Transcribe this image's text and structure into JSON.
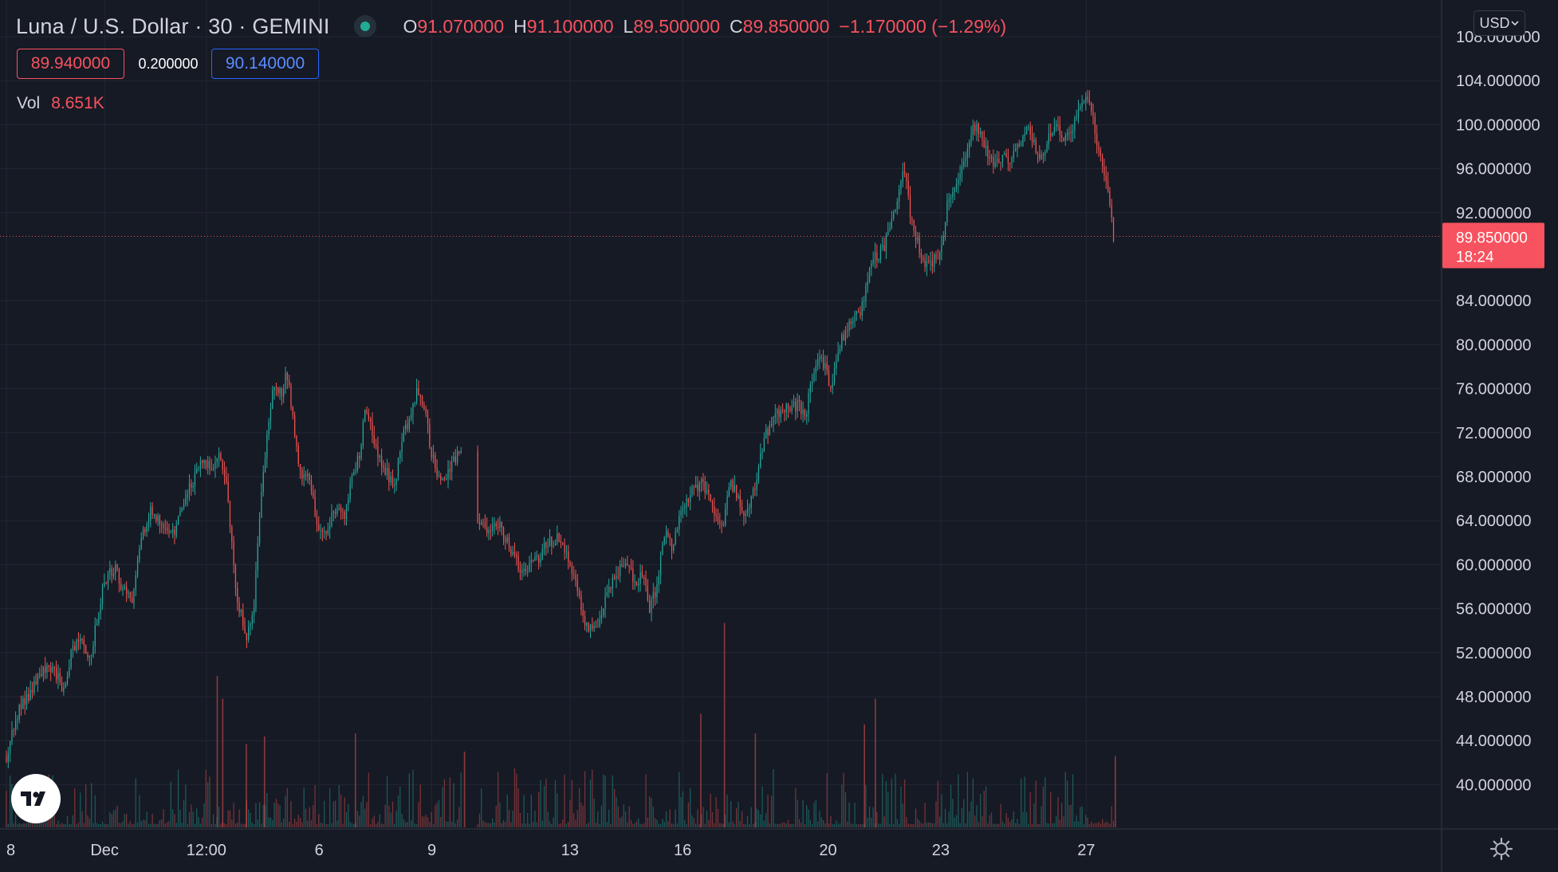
{
  "header": {
    "title": "Luna / U.S. Dollar · 30 · GEMINI",
    "ohlc": {
      "o_label": "O",
      "o": "91.070000",
      "h_label": "H",
      "h": "91.100000",
      "l_label": "L",
      "l": "89.500000",
      "c_label": "C",
      "c": "89.850000",
      "change": "−1.170000 (−1.29%)"
    },
    "bid": "89.940000",
    "spread": "0.200000",
    "ask": "90.140000",
    "volume_label": "Vol",
    "volume_value": "8.651K",
    "currency": "USD"
  },
  "colors": {
    "up": "#26a69a",
    "down": "#ef5350",
    "background": "#161a25",
    "grid": "#232633",
    "ask": "#2962ff"
  },
  "last_price": {
    "value": 89.85,
    "label": "89.850000",
    "countdown": "18:24"
  },
  "chart_data": {
    "type": "candlestick",
    "symbol": "Luna / U.S. Dollar",
    "interval": "30",
    "exchange": "GEMINI",
    "y_ticks": [
      "40.000000",
      "44.000000",
      "48.000000",
      "52.000000",
      "56.000000",
      "60.000000",
      "64.000000",
      "68.000000",
      "72.000000",
      "76.000000",
      "80.000000",
      "84.000000",
      "92.000000",
      "96.000000",
      "100.000000",
      "104.000000",
      "108.000000"
    ],
    "ylim": [
      36.5,
      109
    ],
    "x_ticks": [
      {
        "label": "8",
        "t": 0
      },
      {
        "label": "Dec",
        "t": 2.7
      },
      {
        "label": "12:00",
        "t": 5.5
      },
      {
        "label": "6",
        "t": 8.6
      },
      {
        "label": "9",
        "t": 11.7
      },
      {
        "label": "13",
        "t": 15.5
      },
      {
        "label": "16",
        "t": 18.6
      },
      {
        "label": "20",
        "t": 22.6
      },
      {
        "label": "23",
        "t": 25.7
      },
      {
        "label": "27",
        "t": 29.7
      }
    ],
    "xlim": [
      -0.1,
      30.8
    ],
    "price_path": [
      [
        0,
        42.5
      ],
      [
        0.3,
        46.5
      ],
      [
        0.7,
        48.5
      ],
      [
        1.0,
        50.5
      ],
      [
        1.3,
        50.5
      ],
      [
        1.6,
        48.5
      ],
      [
        1.8,
        52.5
      ],
      [
        2.1,
        53.0
      ],
      [
        2.3,
        51.5
      ],
      [
        2.7,
        58.5
      ],
      [
        3.0,
        60.0
      ],
      [
        3.2,
        57.5
      ],
      [
        3.5,
        57.0
      ],
      [
        3.7,
        62.5
      ],
      [
        4.0,
        65.0
      ],
      [
        4.3,
        63.5
      ],
      [
        4.6,
        63.0
      ],
      [
        4.9,
        66.0
      ],
      [
        5.1,
        67.5
      ],
      [
        5.4,
        69.5
      ],
      [
        5.7,
        68.5
      ],
      [
        5.9,
        70.0
      ],
      [
        6.1,
        66.0
      ],
      [
        6.3,
        58.0
      ],
      [
        6.6,
        53.0
      ],
      [
        6.8,
        56.0
      ],
      [
        7.0,
        66.0
      ],
      [
        7.2,
        73.0
      ],
      [
        7.4,
        77.0
      ],
      [
        7.6,
        74.5
      ],
      [
        7.7,
        78.0
      ],
      [
        7.9,
        72.5
      ],
      [
        8.1,
        68.0
      ],
      [
        8.3,
        68.5
      ],
      [
        8.5,
        64.5
      ],
      [
        8.7,
        62.5
      ],
      [
        8.9,
        64.0
      ],
      [
        9.1,
        65.0
      ],
      [
        9.3,
        64.5
      ],
      [
        9.5,
        67.5
      ],
      [
        9.7,
        70.0
      ],
      [
        9.9,
        74.5
      ],
      [
        10.1,
        71.0
      ],
      [
        10.3,
        69.5
      ],
      [
        10.5,
        68.0
      ],
      [
        10.7,
        67.5
      ],
      [
        10.9,
        72.0
      ],
      [
        11.1,
        73.0
      ],
      [
        11.3,
        76.0
      ],
      [
        11.5,
        74.0
      ],
      [
        11.7,
        70.0
      ],
      [
        11.9,
        67.5
      ],
      [
        12.1,
        68.0
      ],
      [
        12.3,
        69.5
      ],
      [
        12.5,
        70.5
      ],
      [
        13.0,
        63.5
      ],
      [
        13.3,
        63.0
      ],
      [
        13.6,
        63.5
      ],
      [
        13.9,
        61.0
      ],
      [
        14.2,
        59.5
      ],
      [
        14.5,
        60.0
      ],
      [
        14.8,
        61.5
      ],
      [
        15.1,
        62.5
      ],
      [
        15.4,
        61.0
      ],
      [
        15.7,
        58.0
      ],
      [
        15.9,
        54.5
      ],
      [
        16.1,
        54.0
      ],
      [
        16.3,
        55.0
      ],
      [
        16.5,
        57.0
      ],
      [
        16.8,
        59.5
      ],
      [
        17.1,
        60.0
      ],
      [
        17.3,
        58.5
      ],
      [
        17.5,
        59.0
      ],
      [
        17.7,
        56.0
      ],
      [
        17.9,
        58.0
      ],
      [
        18.1,
        63.0
      ],
      [
        18.3,
        61.5
      ],
      [
        18.5,
        64.5
      ],
      [
        18.8,
        66.5
      ],
      [
        19.1,
        67.5
      ],
      [
        19.3,
        66.0
      ],
      [
        19.5,
        64.0
      ],
      [
        19.7,
        63.0
      ],
      [
        19.9,
        68.0
      ],
      [
        20.1,
        66.0
      ],
      [
        20.3,
        64.0
      ],
      [
        20.5,
        66.0
      ],
      [
        20.7,
        69.0
      ],
      [
        20.9,
        72.0
      ],
      [
        21.1,
        73.5
      ],
      [
        21.4,
        74.0
      ],
      [
        21.7,
        74.5
      ],
      [
        22.0,
        74.0
      ],
      [
        22.3,
        79.0
      ],
      [
        22.5,
        78.0
      ],
      [
        22.7,
        76.0
      ],
      [
        22.9,
        80.0
      ],
      [
        23.2,
        82.0
      ],
      [
        23.5,
        83.0
      ],
      [
        23.7,
        86.0
      ],
      [
        23.9,
        88.0
      ],
      [
        24.1,
        88.5
      ],
      [
        24.3,
        91.0
      ],
      [
        24.5,
        93.0
      ],
      [
        24.7,
        96.0
      ],
      [
        24.9,
        91.0
      ],
      [
        25.1,
        89.0
      ],
      [
        25.3,
        87.0
      ],
      [
        25.5,
        87.5
      ],
      [
        25.7,
        89.0
      ],
      [
        25.9,
        93.0
      ],
      [
        26.1,
        94.0
      ],
      [
        26.3,
        96.0
      ],
      [
        26.5,
        99.0
      ],
      [
        26.7,
        100.0
      ],
      [
        26.9,
        98.0
      ],
      [
        27.1,
        96.5
      ],
      [
        27.3,
        97.0
      ],
      [
        27.6,
        97.0
      ],
      [
        27.9,
        98.5
      ],
      [
        28.1,
        100.0
      ],
      [
        28.3,
        98.0
      ],
      [
        28.5,
        97.0
      ],
      [
        28.7,
        99.5
      ],
      [
        28.9,
        100.0
      ],
      [
        29.1,
        99.0
      ],
      [
        29.3,
        99.5
      ],
      [
        29.5,
        101.0
      ],
      [
        29.7,
        103.0
      ],
      [
        29.9,
        100.0
      ],
      [
        30.1,
        97.0
      ],
      [
        30.3,
        94.0
      ],
      [
        30.45,
        89.85
      ]
    ],
    "gaps": [
      [
        12.55,
        12.95
      ]
    ],
    "candle_count": 600,
    "volume_spikes": [
      {
        "t": 5.8,
        "v": 1.0
      },
      {
        "t": 5.95,
        "v": 0.85
      },
      {
        "t": 6.6,
        "v": 0.55
      },
      {
        "t": 7.1,
        "v": 0.6
      },
      {
        "t": 9.6,
        "v": 0.62
      },
      {
        "t": 12.6,
        "v": 0.5
      },
      {
        "t": 19.1,
        "v": 0.75
      },
      {
        "t": 19.75,
        "v": 1.35
      },
      {
        "t": 20.6,
        "v": 0.62
      },
      {
        "t": 23.9,
        "v": 0.85
      },
      {
        "t": 23.6,
        "v": 0.68
      },
      {
        "t": 30.5,
        "v": 0.47
      }
    ]
  }
}
